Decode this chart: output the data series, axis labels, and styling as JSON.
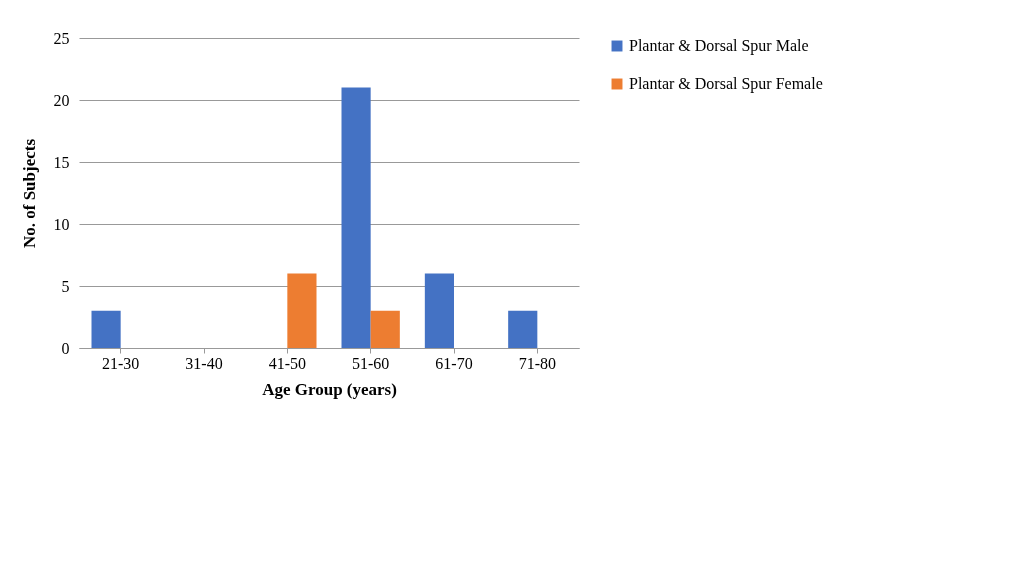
{
  "chart_data": {
    "type": "bar",
    "xlabel": "Age Group (years)",
    "ylabel": "No. of Subjects",
    "categories": [
      "21-30",
      "31-40",
      "41-50",
      "51-60",
      "61-70",
      "71-80"
    ],
    "series": [
      {
        "name": "Plantar & Dorsal Spur Male",
        "color": "#4472c4",
        "values": [
          3,
          0,
          0,
          21,
          6,
          3
        ]
      },
      {
        "name": "Plantar & Dorsal Spur Female",
        "color": "#ed7d31",
        "values": [
          0,
          0,
          6,
          3,
          0,
          0
        ]
      }
    ],
    "ylim": [
      0,
      25
    ],
    "yticks": [
      0,
      5,
      10,
      15,
      20,
      25
    ],
    "grid": "y",
    "legend": "right"
  }
}
